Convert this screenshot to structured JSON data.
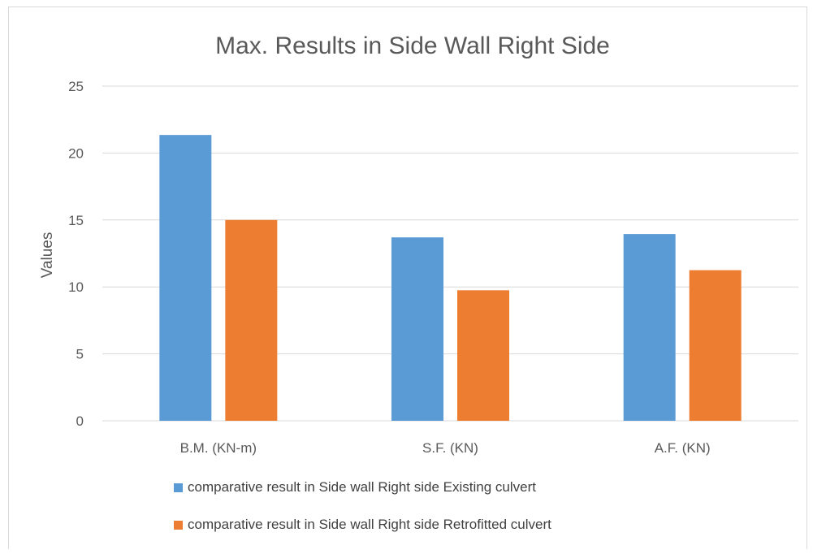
{
  "chart_data": {
    "type": "bar",
    "title": "Max. Results in Side Wall Right Side",
    "ylabel": "Values",
    "xlabel": "",
    "categories": [
      "B.M. (KN-m)",
      "S.F. (KN)",
      "A.F. (KN)"
    ],
    "series": [
      {
        "name": "comparative result in Side wall Right side Existing culvert",
        "values": [
          21.35,
          13.7,
          13.95
        ],
        "color": "#5b9bd5"
      },
      {
        "name": "comparative result in Side wall Right side Retrofitted culvert",
        "values": [
          15.0,
          9.75,
          11.25
        ],
        "color": "#ed7d31"
      }
    ],
    "ylim": [
      0,
      25
    ],
    "yticks": [
      "0",
      "5",
      "10",
      "15",
      "20",
      "25"
    ],
    "grid": true,
    "legend_position": "bottom"
  }
}
